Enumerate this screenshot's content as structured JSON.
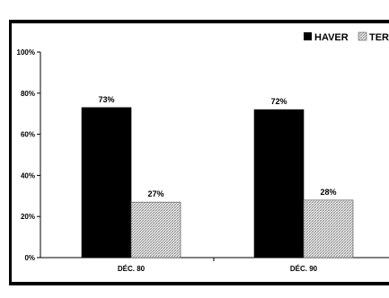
{
  "chart_data": {
    "type": "bar",
    "categories": [
      "DÉC. 80",
      "DÉC. 90"
    ],
    "series": [
      {
        "name": "HAVER",
        "values": [
          73,
          72
        ],
        "labels": [
          "73%",
          "72%"
        ],
        "color": "#000000",
        "fill": "solid"
      },
      {
        "name": "TER",
        "values": [
          27,
          28
        ],
        "labels": [
          "27%",
          "28%"
        ],
        "color": "#d4d4d4",
        "fill": "hatched"
      }
    ],
    "yticks": [
      "0%",
      "20%",
      "40%",
      "60%",
      "80%",
      "100%"
    ],
    "ylim": [
      0,
      100
    ],
    "title": "",
    "xlabel": "",
    "ylabel": "",
    "grid": false,
    "legend": "top-right"
  }
}
